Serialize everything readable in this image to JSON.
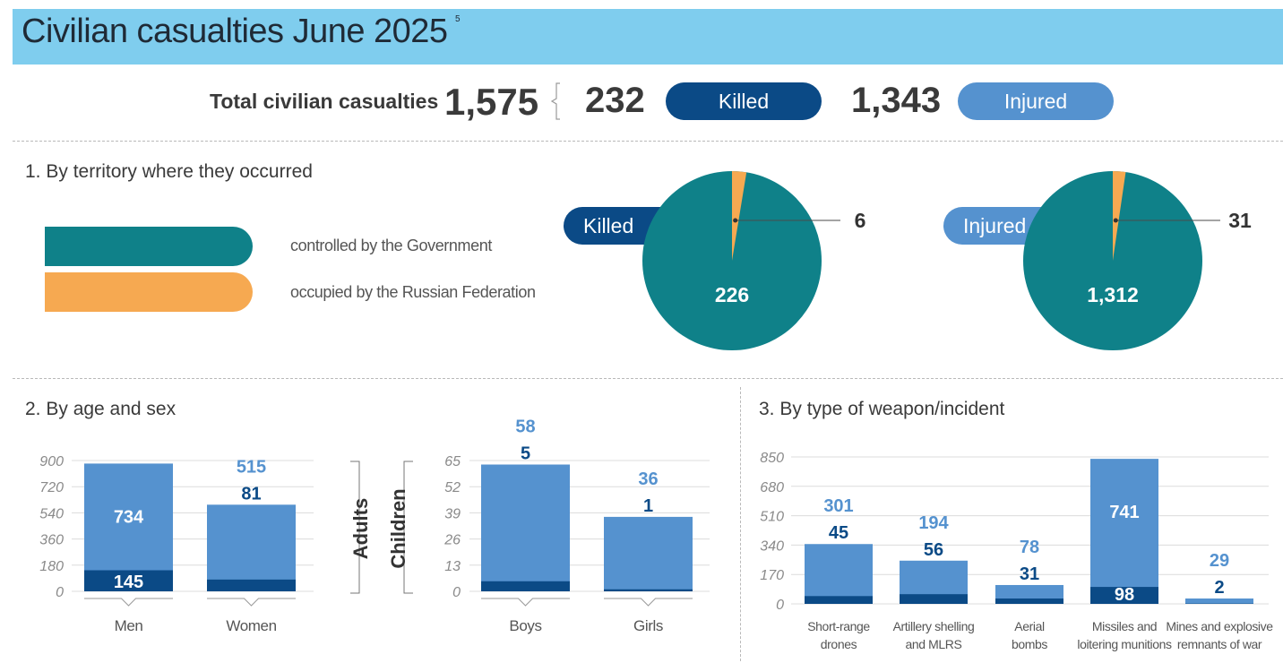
{
  "header": {
    "title": "Civilian casualties June 2025",
    "footnote": "5"
  },
  "totals": {
    "label": "Total civilian casualties",
    "total": "1,575",
    "killed_count": "232",
    "killed_label": "Killed",
    "injured_count": "1,343",
    "injured_label": "Injured"
  },
  "colors": {
    "dark_blue": "#0b4a86",
    "mid_blue": "#5592cf",
    "teal": "#0f8189",
    "orange": "#f6a951",
    "header": "#7fcdee"
  },
  "territory": {
    "title": "1. By territory where they occurred",
    "legend": [
      {
        "label": "controlled by the Government",
        "color": "#0f8189"
      },
      {
        "label": "occupied by the Russian Federation",
        "color": "#f6a951"
      }
    ]
  },
  "age_sex": {
    "title": "2. By age and sex",
    "adults_label": "Adults",
    "children_label": "Children"
  },
  "weapon": {
    "title": "3. By type of weapon/incident"
  },
  "chart_data": [
    {
      "id": "pie-killed",
      "type": "pie",
      "title": "Killed",
      "slices": [
        {
          "label": "controlled by the Government",
          "value": 226,
          "display": "226",
          "color": "#0f8189"
        },
        {
          "label": "occupied by the Russian Federation",
          "value": 6,
          "display": "6",
          "color": "#f6a951"
        }
      ]
    },
    {
      "id": "pie-injured",
      "type": "pie",
      "title": "Injured",
      "slices": [
        {
          "label": "controlled by the Government",
          "value": 1312,
          "display": "1,312",
          "color": "#0f8189"
        },
        {
          "label": "occupied by the Russian Federation",
          "value": 31,
          "display": "31",
          "color": "#f6a951"
        }
      ]
    },
    {
      "id": "bar-adults",
      "type": "bar",
      "stacked": true,
      "categories": [
        "Men",
        "Women"
      ],
      "series": [
        {
          "name": "Killed",
          "values": [
            145,
            81
          ],
          "labels": [
            "145",
            "81"
          ],
          "color": "#0b4a86"
        },
        {
          "name": "Injured",
          "values": [
            734,
            515
          ],
          "labels": [
            "734",
            "515"
          ],
          "color": "#5592cf"
        }
      ],
      "yticks": [
        0,
        180,
        360,
        540,
        720,
        900
      ],
      "ylim": [
        0,
        900
      ]
    },
    {
      "id": "bar-children",
      "type": "bar",
      "stacked": true,
      "categories": [
        "Boys",
        "Girls"
      ],
      "series": [
        {
          "name": "Killed",
          "values": [
            5,
            1
          ],
          "labels": [
            "5",
            "1"
          ],
          "color": "#0b4a86"
        },
        {
          "name": "Injured",
          "values": [
            58,
            36
          ],
          "labels": [
            "58",
            "36"
          ],
          "color": "#5592cf"
        }
      ],
      "yticks": [
        0,
        13,
        26,
        39,
        52,
        65
      ],
      "ylim": [
        0,
        65
      ]
    },
    {
      "id": "bar-weapon",
      "type": "bar",
      "stacked": true,
      "categories": [
        [
          "Short-range",
          "drones"
        ],
        [
          "Artillery shelling",
          "and MLRS"
        ],
        [
          "Aerial",
          "bombs"
        ],
        [
          "Missiles and",
          "loitering munitions"
        ],
        [
          "Mines and explosive",
          "remnants of war"
        ]
      ],
      "series": [
        {
          "name": "Killed",
          "values": [
            45,
            56,
            31,
            98,
            2
          ],
          "labels": [
            "45",
            "56",
            "31",
            "98",
            "2"
          ],
          "color": "#0b4a86"
        },
        {
          "name": "Injured",
          "values": [
            301,
            194,
            78,
            741,
            29
          ],
          "labels": [
            "301",
            "194",
            "78",
            "741",
            "29"
          ],
          "color": "#5592cf"
        }
      ],
      "yticks": [
        0,
        170,
        340,
        510,
        680,
        850
      ],
      "ylim": [
        0,
        850
      ]
    }
  ]
}
